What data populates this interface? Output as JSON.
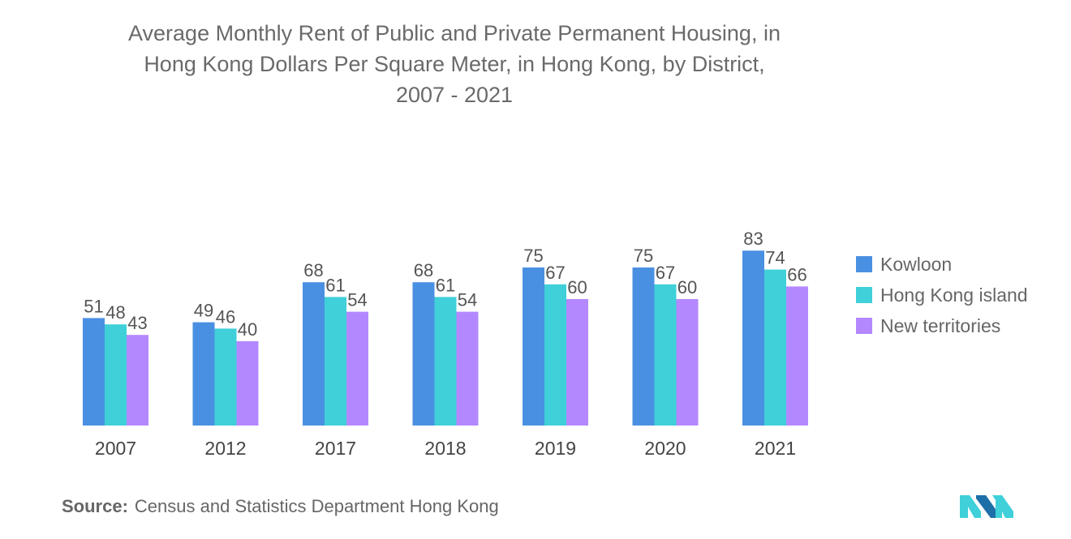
{
  "title_lines": [
    "Average Monthly Rent of Public and Private Permanent Housing, in",
    "Hong Kong Dollars Per Square Meter, in Hong Kong, by District,",
    "2007 - 2021"
  ],
  "chart_data": {
    "type": "bar",
    "title": "Average Monthly Rent of Public and Private Permanent Housing, in Hong Kong Dollars Per Square Meter, in Hong Kong, by District, 2007 - 2021",
    "categories": [
      "2007",
      "2012",
      "2017",
      "2018",
      "2019",
      "2020",
      "2021"
    ],
    "series": [
      {
        "name": "Kowloon",
        "color": "#4a90e2",
        "values": [
          51,
          49,
          68,
          68,
          75,
          75,
          83
        ]
      },
      {
        "name": "Hong Kong island",
        "color": "#3fd0d9",
        "values": [
          48,
          46,
          61,
          61,
          67,
          67,
          74
        ]
      },
      {
        "name": "New territories",
        "color": "#b388ff",
        "values": [
          43,
          40,
          54,
          54,
          60,
          60,
          66
        ]
      }
    ],
    "xlabel": "",
    "ylabel": "",
    "ylim": [
      0,
      100
    ],
    "grid": false,
    "legend": "right"
  },
  "legend": {
    "items": [
      {
        "label": "Kowloon",
        "color": "#4a90e2"
      },
      {
        "label": "Hong Kong island",
        "color": "#3fd0d9"
      },
      {
        "label": "New territories",
        "color": "#b388ff"
      }
    ]
  },
  "source": {
    "label": "Source:",
    "text": "Census and Statistics Department Hong Kong"
  },
  "logo": {
    "icon": "mordor-logo-icon",
    "colors": [
      "#3fd0d9",
      "#1e6fa8"
    ]
  }
}
